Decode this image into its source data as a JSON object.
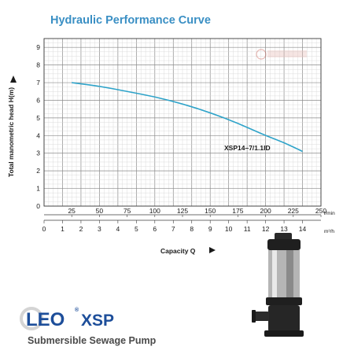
{
  "colors": {
    "title": "#3a8fc4",
    "curve": "#2ea3c9",
    "grid_major": "#8a8a8a",
    "grid_minor": "#d4d4d4",
    "brand_blue": "#1d4e9a",
    "tagline": "#4a4a4a"
  },
  "chart_data": {
    "type": "line",
    "title": "Hydraulic Performance Curve",
    "ylabel": "Total manometric head H(m)",
    "xlabel": "Capacity Q",
    "ylim": [
      0,
      9.5
    ],
    "yticks": [
      "0",
      "1",
      "2",
      "3",
      "4",
      "5",
      "6",
      "7",
      "8",
      "9"
    ],
    "grid": true,
    "x_lpm": {
      "ticks": [
        "25",
        "50",
        "75",
        "100",
        "125",
        "150",
        "175",
        "200",
        "225",
        "250"
      ],
      "unit": "l/min"
    },
    "x_m3h": {
      "ticks": [
        "0",
        "1",
        "2",
        "3",
        "4",
        "5",
        "6",
        "7",
        "8",
        "9",
        "10",
        "11",
        "12",
        "13",
        "14"
      ],
      "unit": "m³/h"
    },
    "series": [
      {
        "name": "XSP14–7/1.1ID",
        "x_m3h": [
          1.5,
          3,
          4.5,
          6,
          7.5,
          9,
          10.5,
          12,
          13,
          14
        ],
        "y": [
          7.0,
          6.8,
          6.5,
          6.2,
          5.8,
          5.3,
          4.7,
          4.0,
          3.6,
          3.1
        ]
      }
    ]
  },
  "brand": {
    "logo": "LEO",
    "registered": "®",
    "series": "XSP",
    "tagline": "Submersible Sewage Pump"
  }
}
